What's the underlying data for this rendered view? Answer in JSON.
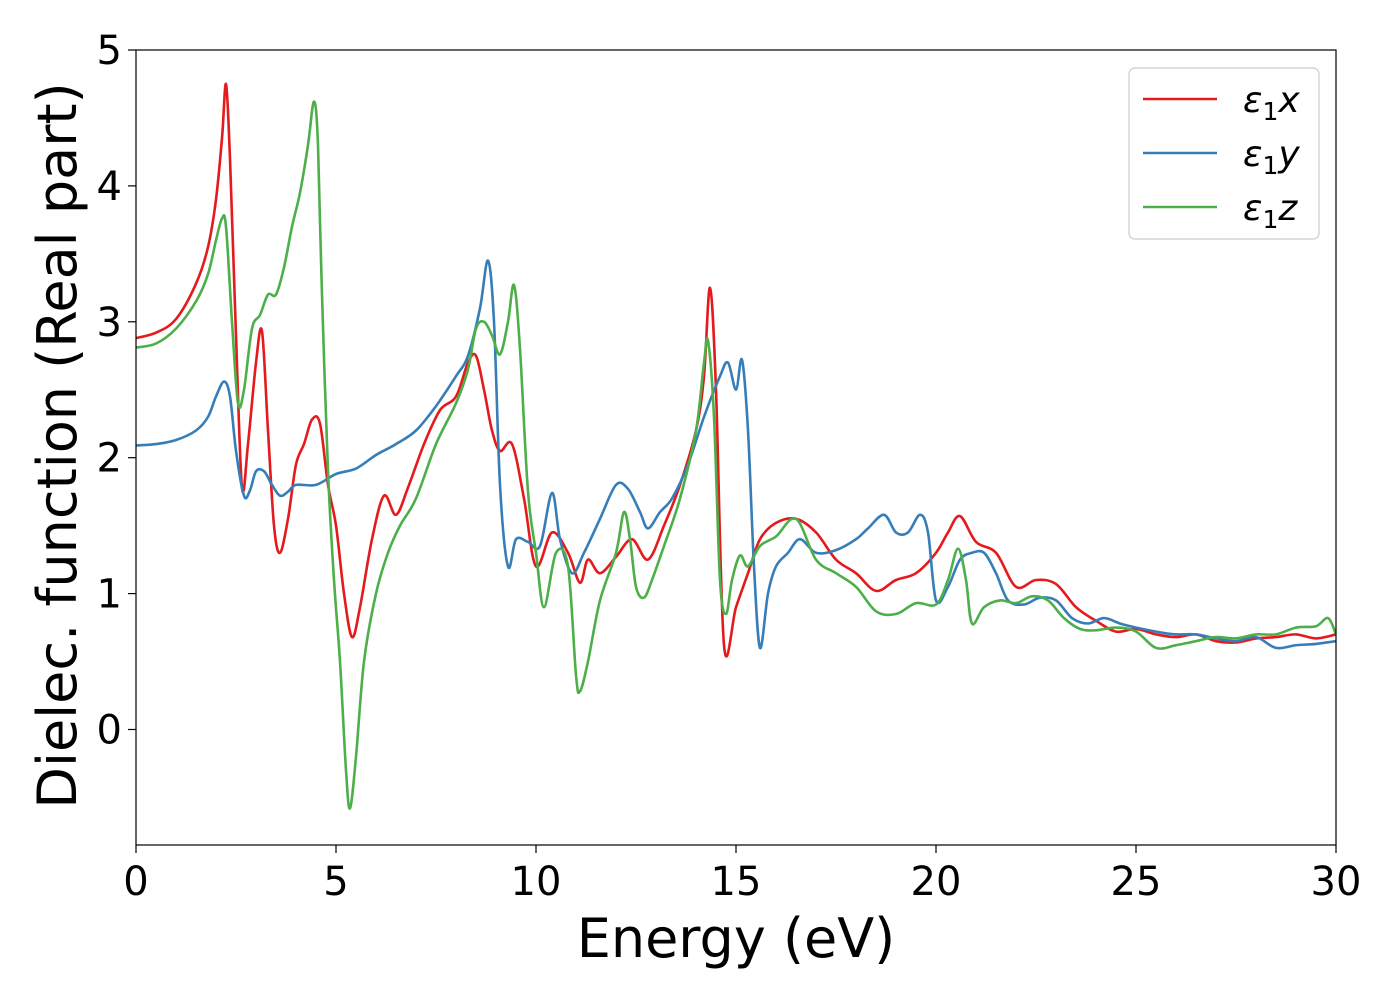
{
  "chart_data": {
    "type": "line",
    "xlabel": "Energy (eV)",
    "ylabel": "Dielec. function (Real part)",
    "xlim": [
      0,
      30
    ],
    "ylim": [
      -0.85,
      5.0
    ],
    "xticks": [
      "0",
      "5",
      "10",
      "15",
      "20",
      "25",
      "30"
    ],
    "yticks": [
      "0",
      "1",
      "2",
      "3",
      "4",
      "5"
    ],
    "grid": false,
    "legend_position": "top-right",
    "series": [
      {
        "name": "ε1x",
        "legend_base": "ε",
        "legend_sub": "1",
        "legend_var": "x",
        "color": "#e41a1c",
        "x": [
          0,
          0.5,
          1.0,
          1.5,
          1.8,
          2.0,
          2.15,
          2.25,
          2.35,
          2.5,
          2.65,
          2.8,
          3.0,
          3.15,
          3.3,
          3.45,
          3.6,
          3.8,
          4.0,
          4.2,
          4.4,
          4.6,
          4.8,
          5.0,
          5.2,
          5.4,
          5.6,
          5.9,
          6.2,
          6.5,
          6.8,
          7.2,
          7.6,
          8.0,
          8.3,
          8.5,
          8.7,
          8.9,
          9.1,
          9.4,
          9.7,
          10.0,
          10.4,
          10.8,
          11.1,
          11.3,
          11.6,
          12.0,
          12.4,
          12.8,
          13.2,
          13.6,
          14.0,
          14.2,
          14.35,
          14.5,
          14.7,
          15.0,
          15.3,
          15.6,
          16.0,
          16.5,
          17.0,
          17.5,
          18.0,
          18.5,
          19.0,
          19.5,
          20.0,
          20.3,
          20.6,
          21.0,
          21.5,
          22.0,
          22.5,
          23.0,
          23.5,
          24.0,
          24.5,
          25.0,
          25.5,
          26.0,
          26.5,
          27.0,
          27.5,
          28.0,
          28.5,
          29.0,
          29.5,
          30.0
        ],
        "y": [
          2.88,
          2.92,
          3.02,
          3.28,
          3.55,
          3.9,
          4.35,
          4.75,
          4.2,
          2.9,
          1.78,
          2.1,
          2.7,
          2.93,
          2.2,
          1.5,
          1.3,
          1.55,
          1.95,
          2.1,
          2.28,
          2.25,
          1.8,
          1.5,
          1.0,
          0.68,
          0.9,
          1.4,
          1.72,
          1.58,
          1.78,
          2.1,
          2.35,
          2.45,
          2.7,
          2.75,
          2.5,
          2.2,
          2.05,
          2.1,
          1.7,
          1.2,
          1.45,
          1.3,
          1.08,
          1.25,
          1.15,
          1.27,
          1.4,
          1.25,
          1.5,
          1.8,
          2.2,
          2.6,
          3.25,
          2.5,
          0.62,
          0.9,
          1.15,
          1.4,
          1.52,
          1.55,
          1.45,
          1.25,
          1.15,
          1.02,
          1.1,
          1.15,
          1.3,
          1.45,
          1.57,
          1.38,
          1.3,
          1.05,
          1.1,
          1.07,
          0.9,
          0.8,
          0.72,
          0.74,
          0.7,
          0.68,
          0.7,
          0.65,
          0.64,
          0.67,
          0.68,
          0.7,
          0.67,
          0.7
        ]
      },
      {
        "name": "ε1y",
        "legend_base": "ε",
        "legend_sub": "1",
        "legend_var": "y",
        "color": "#377eb8",
        "x": [
          0,
          0.5,
          1.0,
          1.5,
          1.8,
          2.0,
          2.2,
          2.35,
          2.5,
          2.7,
          2.85,
          3.0,
          3.2,
          3.4,
          3.6,
          3.8,
          4.0,
          4.5,
          5.0,
          5.5,
          6.0,
          6.5,
          7.0,
          7.5,
          8.0,
          8.3,
          8.6,
          8.8,
          8.95,
          9.1,
          9.3,
          9.5,
          9.8,
          10.1,
          10.4,
          10.6,
          10.9,
          11.2,
          11.6,
          12.0,
          12.3,
          12.6,
          12.8,
          13.1,
          13.4,
          13.8,
          14.2,
          14.6,
          14.8,
          15.0,
          15.15,
          15.3,
          15.45,
          15.6,
          15.8,
          16.0,
          16.3,
          16.6,
          17.0,
          17.5,
          18.0,
          18.3,
          18.7,
          19.0,
          19.3,
          19.6,
          19.8,
          20.0,
          20.3,
          20.6,
          20.9,
          21.2,
          21.5,
          21.8,
          22.2,
          22.6,
          23.0,
          23.4,
          23.8,
          24.2,
          24.6,
          25.0,
          25.5,
          26.0,
          26.5,
          27.0,
          27.5,
          28.0,
          28.5,
          29.0,
          29.5,
          30.0
        ],
        "y": [
          2.09,
          2.1,
          2.13,
          2.2,
          2.3,
          2.45,
          2.56,
          2.45,
          2.05,
          1.72,
          1.76,
          1.9,
          1.9,
          1.8,
          1.72,
          1.75,
          1.8,
          1.8,
          1.88,
          1.92,
          2.02,
          2.1,
          2.2,
          2.38,
          2.6,
          2.75,
          3.1,
          3.45,
          3.0,
          1.8,
          1.2,
          1.4,
          1.38,
          1.35,
          1.74,
          1.4,
          1.15,
          1.3,
          1.55,
          1.8,
          1.77,
          1.6,
          1.48,
          1.6,
          1.7,
          1.95,
          2.3,
          2.6,
          2.7,
          2.5,
          2.72,
          2.2,
          1.2,
          0.6,
          1.0,
          1.2,
          1.3,
          1.4,
          1.3,
          1.32,
          1.4,
          1.48,
          1.58,
          1.45,
          1.45,
          1.58,
          1.45,
          0.95,
          1.05,
          1.25,
          1.3,
          1.3,
          1.15,
          0.95,
          0.92,
          0.97,
          0.95,
          0.82,
          0.78,
          0.82,
          0.78,
          0.75,
          0.72,
          0.7,
          0.7,
          0.67,
          0.65,
          0.68,
          0.6,
          0.62,
          0.63,
          0.65
        ]
      },
      {
        "name": "ε1z",
        "legend_base": "ε",
        "legend_sub": "1",
        "legend_var": "z",
        "color": "#4daf4a",
        "x": [
          0,
          0.5,
          1.0,
          1.5,
          1.8,
          2.0,
          2.15,
          2.25,
          2.4,
          2.55,
          2.7,
          2.9,
          3.1,
          3.3,
          3.5,
          3.7,
          3.9,
          4.1,
          4.3,
          4.45,
          4.55,
          4.65,
          4.8,
          4.95,
          5.1,
          5.25,
          5.35,
          5.5,
          5.7,
          6.0,
          6.3,
          6.6,
          7.0,
          7.5,
          8.0,
          8.3,
          8.5,
          8.7,
          8.9,
          9.1,
          9.3,
          9.45,
          9.6,
          9.8,
          10.0,
          10.2,
          10.5,
          10.8,
          11.0,
          11.1,
          11.3,
          11.6,
          12.0,
          12.2,
          12.35,
          12.5,
          12.7,
          12.9,
          13.2,
          13.6,
          14.0,
          14.2,
          14.3,
          14.45,
          14.6,
          14.75,
          14.9,
          15.1,
          15.3,
          15.6,
          16.0,
          16.5,
          17.0,
          17.5,
          18.0,
          18.5,
          19.0,
          19.5,
          20.0,
          20.3,
          20.55,
          20.75,
          20.9,
          21.2,
          21.6,
          22.0,
          22.4,
          22.8,
          23.2,
          23.6,
          24.0,
          24.5,
          25.0,
          25.5,
          26.0,
          26.5,
          27.0,
          27.5,
          28.0,
          28.5,
          29.0,
          29.5,
          29.8,
          30.0
        ],
        "y": [
          2.81,
          2.84,
          2.95,
          3.15,
          3.35,
          3.6,
          3.76,
          3.7,
          3.0,
          2.4,
          2.5,
          2.95,
          3.05,
          3.2,
          3.2,
          3.4,
          3.7,
          3.95,
          4.3,
          4.62,
          4.3,
          3.2,
          1.9,
          1.1,
          0.5,
          -0.3,
          -0.58,
          -0.2,
          0.5,
          1.0,
          1.3,
          1.5,
          1.7,
          2.1,
          2.4,
          2.65,
          2.95,
          3.0,
          2.9,
          2.76,
          3.0,
          3.27,
          2.8,
          1.75,
          1.3,
          0.9,
          1.3,
          1.2,
          0.4,
          0.28,
          0.5,
          0.95,
          1.3,
          1.6,
          1.4,
          1.05,
          0.97,
          1.1,
          1.35,
          1.7,
          2.2,
          2.7,
          2.86,
          2.3,
          1.1,
          0.85,
          1.1,
          1.28,
          1.2,
          1.35,
          1.42,
          1.55,
          1.25,
          1.15,
          1.05,
          0.87,
          0.85,
          0.93,
          0.92,
          1.1,
          1.33,
          1.1,
          0.78,
          0.9,
          0.95,
          0.93,
          0.98,
          0.95,
          0.82,
          0.74,
          0.73,
          0.75,
          0.72,
          0.6,
          0.62,
          0.65,
          0.68,
          0.67,
          0.7,
          0.7,
          0.75,
          0.76,
          0.82,
          0.7
        ]
      }
    ]
  }
}
